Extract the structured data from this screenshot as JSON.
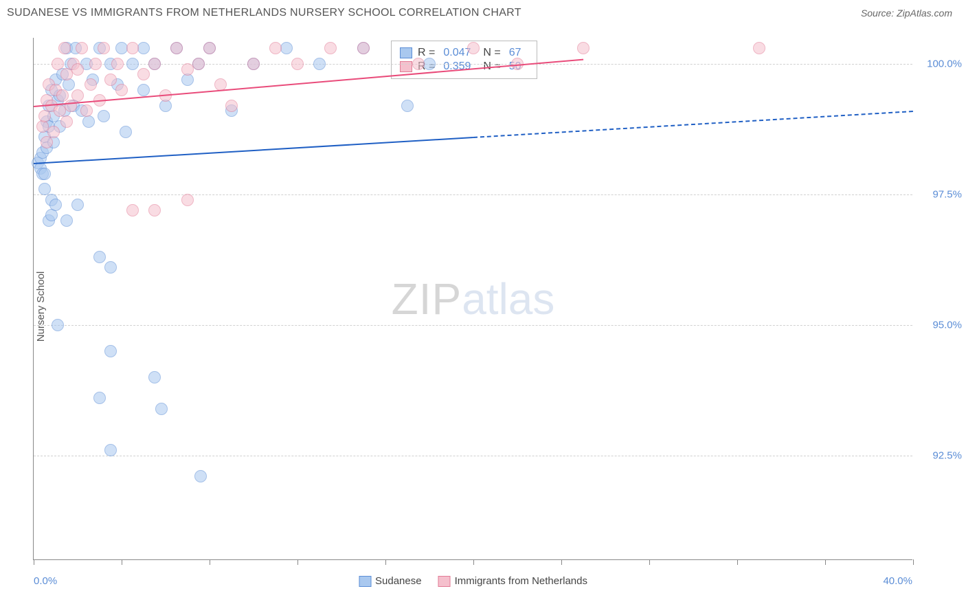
{
  "header": {
    "title": "SUDANESE VS IMMIGRANTS FROM NETHERLANDS NURSERY SCHOOL CORRELATION CHART",
    "source": "Source: ZipAtlas.com"
  },
  "chart": {
    "type": "scatter",
    "ylabel": "Nursery School",
    "xlim": [
      0.0,
      40.0
    ],
    "ylim": [
      90.5,
      100.5
    ],
    "xticks_pct": [
      0,
      10,
      20,
      30,
      40,
      50,
      60,
      70,
      80,
      90,
      100
    ],
    "xaxis_labels": {
      "min": "0.0%",
      "max": "40.0%"
    },
    "yticks": [
      {
        "value": 92.5,
        "label": "92.5%"
      },
      {
        "value": 95.0,
        "label": "95.0%"
      },
      {
        "value": 97.5,
        "label": "97.5%"
      },
      {
        "value": 100.0,
        "label": "100.0%"
      }
    ],
    "background_color": "#ffffff",
    "grid_color": "#d0d0d0",
    "axis_color": "#888888",
    "tick_label_color": "#5b8dd6",
    "marker_radius": 9,
    "marker_opacity": 0.55,
    "series": [
      {
        "id": "sudanese",
        "label": "Sudanese",
        "fill": "#a9c8ef",
        "stroke": "#5b8dd6",
        "line_color": "#1f5fc4",
        "r_value": "0.047",
        "n_value": "67",
        "trend": {
          "x1": 0.0,
          "y1": 98.1,
          "x2": 20.0,
          "y2": 98.6,
          "x2_ext": 40.0,
          "y2_ext": 99.1
        },
        "points": [
          [
            0.2,
            98.1
          ],
          [
            0.3,
            98.0
          ],
          [
            0.3,
            98.2
          ],
          [
            0.4,
            97.9
          ],
          [
            0.4,
            98.3
          ],
          [
            0.5,
            98.6
          ],
          [
            0.5,
            97.9
          ],
          [
            0.5,
            97.6
          ],
          [
            0.6,
            98.4
          ],
          [
            0.6,
            98.9
          ],
          [
            0.7,
            97.0
          ],
          [
            0.7,
            98.8
          ],
          [
            0.7,
            99.2
          ],
          [
            0.8,
            97.4
          ],
          [
            0.8,
            97.1
          ],
          [
            0.8,
            99.5
          ],
          [
            0.9,
            99.0
          ],
          [
            0.9,
            98.5
          ],
          [
            1.0,
            99.7
          ],
          [
            1.0,
            97.3
          ],
          [
            1.1,
            99.3
          ],
          [
            1.1,
            95.0
          ],
          [
            1.2,
            98.8
          ],
          [
            1.2,
            99.4
          ],
          [
            1.3,
            99.8
          ],
          [
            1.4,
            99.1
          ],
          [
            1.5,
            100.3
          ],
          [
            1.5,
            97.0
          ],
          [
            1.6,
            99.6
          ],
          [
            1.7,
            100.0
          ],
          [
            1.8,
            99.2
          ],
          [
            1.9,
            100.3
          ],
          [
            2.0,
            97.3
          ],
          [
            2.2,
            99.1
          ],
          [
            2.4,
            100.0
          ],
          [
            2.5,
            98.9
          ],
          [
            2.7,
            99.7
          ],
          [
            3.0,
            100.3
          ],
          [
            3.0,
            96.3
          ],
          [
            3.0,
            93.6
          ],
          [
            3.2,
            99.0
          ],
          [
            3.5,
            100.0
          ],
          [
            3.5,
            96.1
          ],
          [
            3.5,
            94.5
          ],
          [
            3.5,
            92.6
          ],
          [
            3.8,
            99.6
          ],
          [
            4.0,
            100.3
          ],
          [
            4.2,
            98.7
          ],
          [
            4.5,
            100.0
          ],
          [
            5.0,
            99.5
          ],
          [
            5.0,
            100.3
          ],
          [
            5.5,
            94.0
          ],
          [
            5.5,
            100.0
          ],
          [
            5.8,
            93.4
          ],
          [
            6.0,
            99.2
          ],
          [
            6.5,
            100.3
          ],
          [
            7.0,
            99.7
          ],
          [
            7.5,
            100.0
          ],
          [
            7.6,
            92.1
          ],
          [
            8.0,
            100.3
          ],
          [
            9.0,
            99.1
          ],
          [
            10.0,
            100.0
          ],
          [
            11.5,
            100.3
          ],
          [
            13.0,
            100.0
          ],
          [
            15.0,
            100.3
          ],
          [
            17.0,
            99.2
          ],
          [
            18.0,
            100.0
          ]
        ]
      },
      {
        "id": "netherlands",
        "label": "Immigants from Netherlands",
        "label_display": "Immigrants from Netherlands",
        "fill": "#f5c0cd",
        "stroke": "#e27a95",
        "line_color": "#e94b7a",
        "r_value": "0.359",
        "n_value": "50",
        "trend": {
          "x1": 0.0,
          "y1": 99.2,
          "x2": 25.0,
          "y2": 100.1
        },
        "points": [
          [
            0.4,
            98.8
          ],
          [
            0.5,
            99.0
          ],
          [
            0.6,
            99.3
          ],
          [
            0.6,
            98.5
          ],
          [
            0.7,
            99.6
          ],
          [
            0.8,
            99.2
          ],
          [
            0.9,
            98.7
          ],
          [
            1.0,
            99.5
          ],
          [
            1.1,
            100.0
          ],
          [
            1.2,
            99.1
          ],
          [
            1.3,
            99.4
          ],
          [
            1.4,
            100.3
          ],
          [
            1.5,
            99.8
          ],
          [
            1.5,
            98.9
          ],
          [
            1.7,
            99.2
          ],
          [
            1.8,
            100.0
          ],
          [
            2.0,
            99.4
          ],
          [
            2.0,
            99.9
          ],
          [
            2.2,
            100.3
          ],
          [
            2.4,
            99.1
          ],
          [
            2.6,
            99.6
          ],
          [
            2.8,
            100.0
          ],
          [
            3.0,
            99.3
          ],
          [
            3.2,
            100.3
          ],
          [
            3.5,
            99.7
          ],
          [
            3.8,
            100.0
          ],
          [
            4.0,
            99.5
          ],
          [
            4.5,
            100.3
          ],
          [
            4.5,
            97.2
          ],
          [
            5.0,
            99.8
          ],
          [
            5.5,
            100.0
          ],
          [
            5.5,
            97.2
          ],
          [
            6.0,
            99.4
          ],
          [
            6.5,
            100.3
          ],
          [
            7.0,
            99.9
          ],
          [
            7.0,
            97.4
          ],
          [
            7.5,
            100.0
          ],
          [
            8.0,
            100.3
          ],
          [
            8.5,
            99.6
          ],
          [
            9.0,
            99.2
          ],
          [
            10.0,
            100.0
          ],
          [
            11.0,
            100.3
          ],
          [
            12.0,
            100.0
          ],
          [
            13.5,
            100.3
          ],
          [
            15.0,
            100.3
          ],
          [
            17.5,
            100.0
          ],
          [
            20.0,
            100.3
          ],
          [
            22.0,
            100.0
          ],
          [
            25.0,
            100.3
          ],
          [
            33.0,
            100.3
          ]
        ]
      }
    ],
    "stats_legend": {
      "rows": [
        {
          "series": "sudanese",
          "r_label": "R =",
          "n_label": "N ="
        },
        {
          "series": "netherlands",
          "r_label": "R =",
          "n_label": "N ="
        }
      ]
    },
    "watermark": {
      "part1": "ZIP",
      "part2": "atlas"
    }
  }
}
